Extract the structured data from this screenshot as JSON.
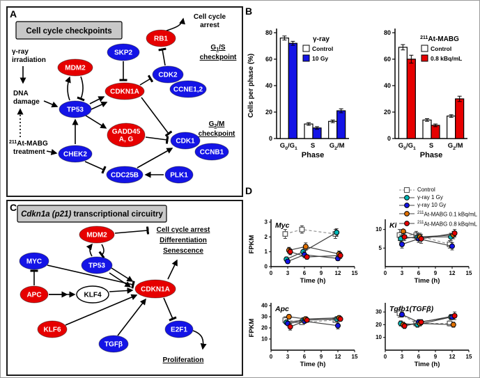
{
  "panels": {
    "a": "A",
    "b": "B",
    "c": "C",
    "d": "D"
  },
  "colors": {
    "red": "#e60000",
    "blue": "#1414e6",
    "cyan": "#00b7b7",
    "orange": "#e07000",
    "gray_header": "#c8c8c8"
  },
  "panelA": {
    "header": "Cell cycle checkpoints",
    "text": {
      "arrest1": "Cell cycle",
      "arrest2": "arrest",
      "gamma1": "γ-ray",
      "gamma2": "irradiation",
      "dna1": "DNA",
      "dna2": "damage",
      "mabg_sup": "211",
      "mabg_name": "At-MABG",
      "mabg2": "treatment",
      "g1s_g": "G",
      "g1s_sub": "1",
      "g1s_rest": "/S",
      "g1s_2": "checkpoint",
      "g2m_g": "G",
      "g2m_sub": "2",
      "g2m_rest": "/M",
      "g2m_2": "checkpoint"
    },
    "nodes": {
      "mdm2": "MDM2",
      "tp53": "TP53",
      "skp2": "SKP2",
      "cdkn1a": "CDKN1A",
      "rb1": "RB1",
      "cdk2": "CDK2",
      "ccne": "CCNE1,2",
      "gadd1": "GADD45",
      "gadd2": "A, G",
      "cdk1": "CDK1",
      "ccnb1": "CCNB1",
      "chek2": "CHEK2",
      "cdc25b": "CDC25B",
      "plk1": "PLK1"
    }
  },
  "panelC": {
    "header_italic": "Cdkn1a (p21)",
    "header_rest": " transcriptional circuitry",
    "text": {
      "arrest1": "Cell cycle arrest",
      "arrest2": "Differentiation",
      "arrest3": "Senescence",
      "prolif": "Proliferation"
    },
    "nodes": {
      "myc": "MYC",
      "mdm2": "MDM2",
      "tp53": "TP53",
      "apc": "APC",
      "klf4": "KLF4",
      "cdkn1a": "CDKN1A",
      "klf6": "KLF6",
      "tgfb": "TGFβ",
      "e2f1": "E2F1"
    }
  },
  "panelD": {
    "legend": [
      {
        "label": "Control",
        "color": "#ffffff",
        "marker": "square",
        "dash": true
      },
      {
        "label": "γ-ray 1 Gy",
        "color": "#00b7b7",
        "marker": "circle"
      },
      {
        "label": "γ-ray 10 Gy",
        "color": "#1414e6",
        "marker": "circle"
      },
      {
        "sup": "211",
        "label": "At-MABG 0.1 kBq/mL",
        "color": "#e07000",
        "marker": "circle"
      },
      {
        "sup": "211",
        "label": "At-MABG 0.8 kBq/mL",
        "color": "#e60000",
        "marker": "circle"
      }
    ]
  },
  "chart_data": [
    {
      "id": "bar-gamma",
      "type": "bar",
      "title": "γ-ray",
      "categories": [
        "G0/G1",
        "S",
        "G2/M"
      ],
      "xlabel": "Phase",
      "ylabel": "Cells per phase (%)",
      "ylim": [
        0,
        80
      ],
      "yticks": [
        0,
        20,
        40,
        60,
        80
      ],
      "series": [
        {
          "name": "Control",
          "color": "#ffffff",
          "values": [
            76,
            11,
            13
          ],
          "err": [
            1.5,
            1,
            1
          ]
        },
        {
          "name": "10 Gy",
          "color": "#1414e6",
          "values": [
            72,
            8,
            21
          ],
          "err": [
            1.5,
            1,
            1.5
          ]
        }
      ]
    },
    {
      "id": "bar-mabg",
      "type": "bar",
      "title_sup": "211",
      "title": "At-MABG",
      "categories": [
        "G0/G1",
        "S",
        "G2/M"
      ],
      "xlabel": "Phase",
      "ylim": [
        0,
        80
      ],
      "yticks": [
        0,
        20,
        40,
        60,
        80
      ],
      "series": [
        {
          "name": "Control",
          "color": "#ffffff",
          "values": [
            69,
            14,
            17
          ],
          "err": [
            2,
            1,
            1
          ]
        },
        {
          "name": "0.8 kBq/mL",
          "color": "#e60000",
          "values": [
            60,
            10,
            30
          ],
          "err": [
            3,
            1,
            2
          ]
        }
      ]
    },
    {
      "id": "line-myc",
      "type": "line",
      "title": "Myc",
      "ylabel": "FPKM",
      "xlabel": "Time (h)",
      "x": [
        3,
        6,
        12
      ],
      "xlim": [
        0,
        15
      ],
      "xticks": [
        0,
        3,
        6,
        9,
        12,
        15
      ],
      "ylim": [
        0,
        3
      ],
      "yticks": [
        0,
        1,
        2,
        3
      ],
      "series": [
        {
          "name": "Control",
          "color": "#ffffff",
          "marker": "square",
          "dash": true,
          "values": [
            2.2,
            2.5,
            2.2
          ],
          "err": [
            0.3,
            0.25,
            0.3
          ]
        },
        {
          "name": "γ-ray 1 Gy",
          "color": "#00b7b7",
          "marker": "circle",
          "values": [
            0.5,
            1.0,
            2.3
          ],
          "err": [
            0.15,
            0.3,
            0.25
          ]
        },
        {
          "name": "γ-ray 10 Gy",
          "color": "#1414e6",
          "marker": "circle",
          "values": [
            0.35,
            0.8,
            0.55
          ],
          "err": [
            0.1,
            0.2,
            0.15
          ]
        },
        {
          "name": "211At-MABG 0.1 kBq/mL",
          "color": "#e07000",
          "marker": "circle",
          "values": [
            1.1,
            1.35,
            0.85
          ],
          "err": [
            0.2,
            0.25,
            0.2
          ]
        },
        {
          "name": "211At-MABG 0.8 kBq/mL",
          "color": "#e60000",
          "marker": "circle",
          "values": [
            1.0,
            0.65,
            0.75
          ],
          "err": [
            0.2,
            0.15,
            0.2
          ]
        }
      ]
    },
    {
      "id": "line-klf6",
      "type": "line",
      "title": "Klf6",
      "xlabel": "Time (h)",
      "x": [
        3,
        6,
        12
      ],
      "xlim": [
        0,
        15
      ],
      "xticks": [
        0,
        3,
        6,
        9,
        12,
        15
      ],
      "ylim": [
        0,
        12
      ],
      "yticks": [
        5,
        10
      ],
      "series": [
        {
          "name": "Control",
          "color": "#ffffff",
          "marker": "square",
          "dash": true,
          "values": [
            8.5,
            8.5,
            6
          ],
          "err": [
            1.5,
            1,
            1
          ]
        },
        {
          "name": "γ-ray 1 Gy",
          "color": "#00b7b7",
          "marker": "circle",
          "values": [
            7.5,
            8,
            8
          ],
          "err": [
            1,
            1,
            1
          ]
        },
        {
          "name": "γ-ray 10 Gy",
          "color": "#1414e6",
          "marker": "circle",
          "values": [
            6,
            7.5,
            5.5
          ],
          "err": [
            1,
            1,
            1
          ]
        },
        {
          "name": "211At-MABG 0.1 kBq/mL",
          "color": "#e07000",
          "marker": "circle",
          "values": [
            9.5,
            8,
            8.5
          ],
          "err": [
            1,
            1,
            1
          ]
        },
        {
          "name": "211At-MABG 0.8 kBq/mL",
          "color": "#e60000",
          "marker": "circle",
          "values": [
            8,
            7.5,
            9
          ],
          "err": [
            1,
            1.2,
            1
          ]
        }
      ]
    },
    {
      "id": "line-apc",
      "type": "line",
      "title": "Apc",
      "ylabel": "FPKM",
      "xlabel": "Time (h)",
      "x": [
        3,
        6,
        12
      ],
      "xlim": [
        0,
        15
      ],
      "xticks": [
        0,
        3,
        6,
        9,
        12,
        15
      ],
      "ylim": [
        0,
        40
      ],
      "yticks": [
        10,
        20,
        30,
        40
      ],
      "series": [
        {
          "name": "Control",
          "color": "#ffffff",
          "marker": "square",
          "dash": true,
          "values": [
            27,
            25,
            27
          ],
          "err": [
            3,
            2,
            2
          ]
        },
        {
          "name": "γ-ray 1 Gy",
          "color": "#00b7b7",
          "marker": "circle",
          "values": [
            25,
            27,
            28
          ],
          "err": [
            2,
            2,
            2
          ]
        },
        {
          "name": "γ-ray 10 Gy",
          "color": "#1414e6",
          "marker": "circle",
          "values": [
            24,
            26,
            22
          ],
          "err": [
            2,
            2,
            3
          ]
        },
        {
          "name": "211At-MABG 0.1 kBq/mL",
          "color": "#e07000",
          "marker": "circle",
          "values": [
            30,
            28,
            29
          ],
          "err": [
            2,
            2,
            2
          ]
        },
        {
          "name": "211At-MABG 0.8 kBq/mL",
          "color": "#e60000",
          "marker": "circle",
          "values": [
            21,
            27,
            28
          ],
          "err": [
            3,
            2,
            2
          ]
        }
      ]
    },
    {
      "id": "line-tgfb1",
      "type": "line",
      "title": "Tgfb1(TGFβ)",
      "xlabel": "Time (h)",
      "x": [
        3,
        6,
        12
      ],
      "xlim": [
        0,
        15
      ],
      "xticks": [
        0,
        3,
        6,
        9,
        12,
        15
      ],
      "ylim": [
        0,
        35
      ],
      "yticks": [
        10,
        20,
        30
      ],
      "series": [
        {
          "name": "Control",
          "color": "#ffffff",
          "marker": "square",
          "dash": true,
          "values": [
            29,
            21,
            21
          ],
          "err": [
            3,
            2,
            2
          ]
        },
        {
          "name": "γ-ray 1 Gy",
          "color": "#00b7b7",
          "marker": "circle",
          "values": [
            21,
            20,
            26
          ],
          "err": [
            2,
            2,
            2
          ]
        },
        {
          "name": "γ-ray 10 Gy",
          "color": "#1414e6",
          "marker": "circle",
          "values": [
            28,
            22,
            26
          ],
          "err": [
            2,
            2,
            2
          ]
        },
        {
          "name": "211At-MABG 0.1 kBq/mL",
          "color": "#e07000",
          "marker": "circle",
          "values": [
            20,
            21,
            20
          ],
          "err": [
            2,
            2,
            2
          ]
        },
        {
          "name": "211At-MABG 0.8 kBq/mL",
          "color": "#e60000",
          "marker": "circle",
          "values": [
            19,
            22,
            27
          ],
          "err": [
            2,
            2,
            3
          ]
        }
      ]
    }
  ]
}
